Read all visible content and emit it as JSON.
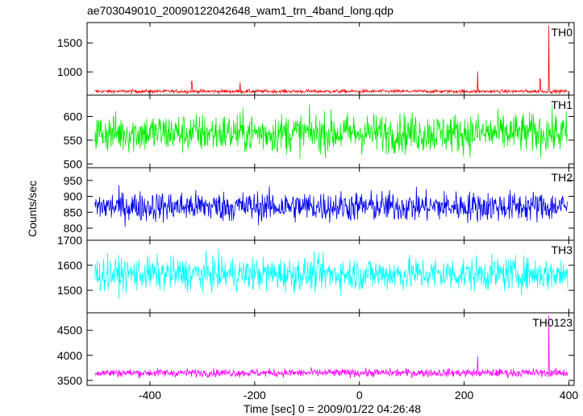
{
  "chart_data": {
    "type": "line",
    "title": "ae703049010_20090122042648_wam1_trn_4band_long.qdp",
    "xlabel": "Time [sec] 0 = 2009/01/22 04:26:48",
    "ylabel": "Counts/sec",
    "xlim": [
      -520,
      410
    ],
    "x_ticks": [
      -400,
      -200,
      0,
      200,
      400
    ],
    "panels": [
      {
        "name": "TH0",
        "color": "#ff0000",
        "ylim": [
          600,
          1850
        ],
        "y_ticks": [
          1000,
          1500
        ],
        "baseline": 665,
        "noise": 20,
        "spikes": [
          {
            "x": -320,
            "y": 840
          },
          {
            "x": -228,
            "y": 820
          },
          {
            "x": 226,
            "y": 1010
          },
          {
            "x": 345,
            "y": 880
          },
          {
            "x": 362,
            "y": 1800
          }
        ]
      },
      {
        "name": "TH1",
        "color": "#00ee00",
        "ylim": [
          492,
          645
        ],
        "y_ticks": [
          500,
          550,
          600
        ],
        "baseline": 565,
        "noise": 28,
        "spikes": []
      },
      {
        "name": "TH2",
        "color": "#0000ee",
        "ylim": [
          762,
          990
        ],
        "y_ticks": [
          800,
          850,
          900,
          950
        ],
        "baseline": 868,
        "noise": 32,
        "spikes": []
      },
      {
        "name": "TH3",
        "color": "#00ffff",
        "ylim": [
          1410,
          1700
        ],
        "y_ticks": [
          1500,
          1600,
          1700
        ],
        "baseline": 1565,
        "noise": 45,
        "spikes": []
      },
      {
        "name": "TH0123",
        "color": "#ff00ff",
        "ylim": [
          3400,
          4850
        ],
        "y_ticks": [
          3500,
          4000,
          4500
        ],
        "baseline": 3650,
        "noise": 55,
        "spikes": [
          {
            "x": 226,
            "y": 3980
          },
          {
            "x": 362,
            "y": 4800
          }
        ]
      }
    ]
  }
}
